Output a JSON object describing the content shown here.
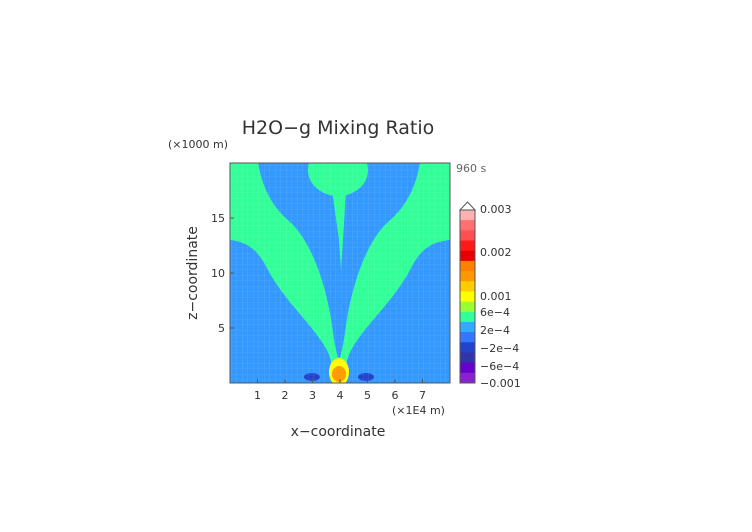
{
  "chart_data": {
    "type": "heatmap",
    "title": "H2O−g Mixing Ratio",
    "xlabel": "x−coordinate",
    "ylabel": "z−coordinate",
    "x_unit": "(×1E4 m)",
    "y_unit": "(×1000 m)",
    "time_label": "960 s",
    "xlim": [
      0,
      8
    ],
    "ylim": [
      0,
      20
    ],
    "x_ticks": [
      1,
      2,
      3,
      4,
      5,
      6,
      7
    ],
    "y_ticks": [
      5,
      10,
      15
    ],
    "colorbar": {
      "labels": [
        {
          "text": "0.003",
          "value": 0.003
        },
        {
          "text": "0.002",
          "value": 0.002
        },
        {
          "text": "0.001",
          "value": 0.001
        },
        {
          "text": "6e−4",
          "value": 0.0006
        },
        {
          "text": "2e−4",
          "value": 0.0002
        },
        {
          "text": "−2e−4",
          "value": -0.0002
        },
        {
          "text": "−6e−4",
          "value": -0.0006
        },
        {
          "text": "−0.001",
          "value": -0.001
        }
      ],
      "colors_top_to_bottom": [
        "#ffb0b0",
        "#ff7070",
        "#ff5050",
        "#ff1a1a",
        "#e60000",
        "#ff7f00",
        "#ff9900",
        "#ffcc00",
        "#ffff00",
        "#99ff33",
        "#33ff99",
        "#33aaff",
        "#3377ff",
        "#2244cc",
        "#3333aa",
        "#6600cc",
        "#8822cc"
      ]
    },
    "regions": [
      {
        "name": "background",
        "level": "−2e−4",
        "color": "#3399ff"
      },
      {
        "name": "plume",
        "level": "2e−4",
        "color": "#33ff99"
      },
      {
        "name": "core",
        "level": "6e−4",
        "color": "#ffff00"
      },
      {
        "name": "peak",
        "level": "0.001",
        "color": "#ff9900"
      },
      {
        "name": "minima",
        "level": "−6e−4",
        "color": "#2244cc"
      }
    ],
    "grid": true
  }
}
